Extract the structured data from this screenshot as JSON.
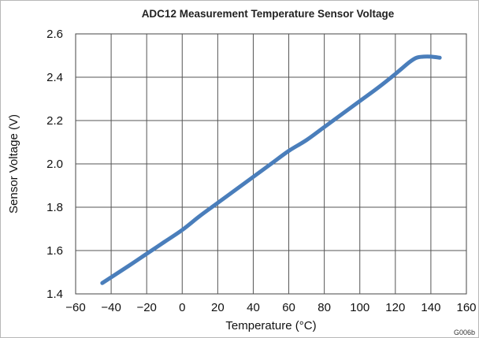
{
  "chart_data": {
    "type": "line",
    "title": "ADC12 Measurement Temperature Sensor Voltage",
    "xlabel": "Temperature (°C)",
    "ylabel": "Sensor Voltage (V)",
    "xlim": [
      -60,
      160
    ],
    "ylim": [
      1.4,
      2.6
    ],
    "x_ticks": [
      -60,
      -40,
      -20,
      0,
      20,
      40,
      60,
      80,
      100,
      120,
      140,
      160
    ],
    "x_tick_labels": [
      "−60",
      "−40",
      "−20",
      "0",
      "20",
      "40",
      "60",
      "80",
      "100",
      "120",
      "140",
      "160"
    ],
    "y_ticks": [
      1.4,
      1.6,
      1.8,
      2.0,
      2.2,
      2.4,
      2.6
    ],
    "y_tick_labels": [
      "1.4",
      "1.6",
      "1.8",
      "2.0",
      "2.2",
      "2.4",
      "2.6"
    ],
    "grid": true,
    "figure_code": "G006b",
    "series": [
      {
        "color": "#4a7ebb",
        "x": [
          -45,
          -30,
          -20,
          -10,
          0,
          10,
          20,
          30,
          40,
          50,
          60,
          70,
          80,
          90,
          100,
          110,
          120,
          128,
          132,
          136,
          140,
          145
        ],
        "y": [
          1.45,
          1.53,
          1.585,
          1.64,
          1.695,
          1.76,
          1.82,
          1.88,
          1.94,
          2.0,
          2.06,
          2.11,
          2.17,
          2.23,
          2.29,
          2.35,
          2.415,
          2.47,
          2.49,
          2.495,
          2.495,
          2.49
        ]
      }
    ]
  }
}
